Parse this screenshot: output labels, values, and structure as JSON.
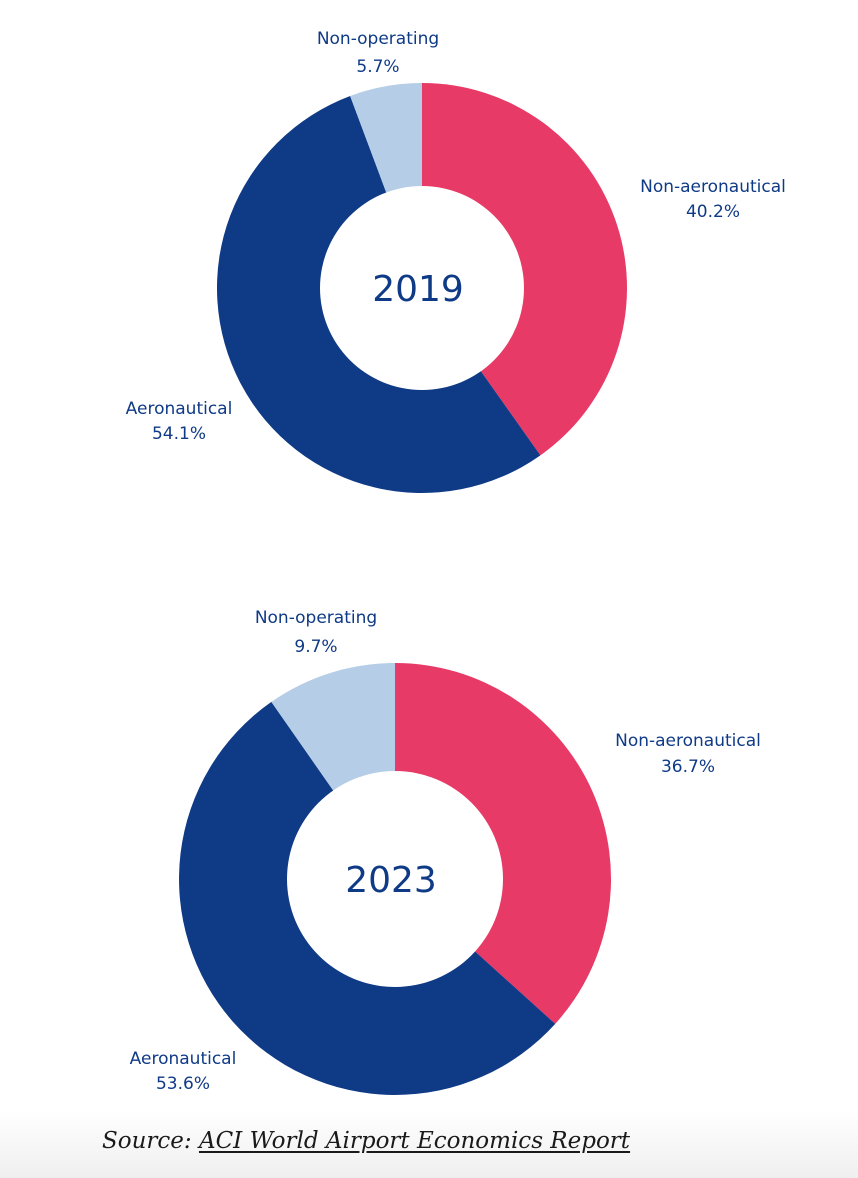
{
  "chart_data": [
    {
      "type": "pie",
      "center_label": "2019",
      "slices": [
        {
          "name": "Non-aeronautical",
          "value": 40.2,
          "label": "40.2%",
          "color": "#e83a66"
        },
        {
          "name": "Aeronautical",
          "value": 54.1,
          "label": "54.1%",
          "color": "#0f3a86"
        },
        {
          "name": "Non-operating",
          "value": 5.7,
          "label": "5.7%",
          "color": "#b5cde6"
        }
      ]
    },
    {
      "type": "pie",
      "center_label": "2023",
      "slices": [
        {
          "name": "Non-aeronautical",
          "value": 36.7,
          "label": "36.7%",
          "color": "#e83a66"
        },
        {
          "name": "Aeronautical",
          "value": 53.6,
          "label": "53.6%",
          "color": "#0f3a86"
        },
        {
          "name": "Non-operating",
          "value": 9.7,
          "label": "9.7%",
          "color": "#b5cde6"
        }
      ]
    }
  ],
  "source": {
    "prefix": "Source: ",
    "link_text": "ACI World Airport Economics Report"
  }
}
